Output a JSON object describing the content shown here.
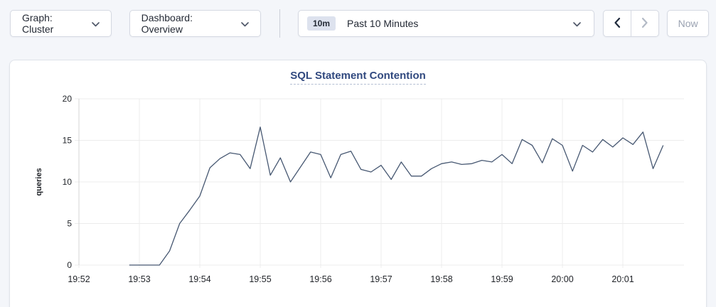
{
  "toolbar": {
    "graph_dropdown_label": "Graph: Cluster",
    "dashboard_dropdown_label": "Dashboard: Overview",
    "time_badge": "10m",
    "time_range_label": "Past 10 Minutes",
    "now_button_label": "Now"
  },
  "icons": {
    "chevron_down": "chevron-down",
    "chevron_left": "chevron-left",
    "chevron_right": "chevron-right"
  },
  "colors": {
    "page_bg": "#f4f6fa",
    "panel_bg": "#ffffff",
    "panel_border": "#e0e4ea",
    "button_border": "#d5d9e2",
    "badge_bg": "#dde2ee",
    "title_text": "#31497f",
    "title_underline": "#b4bfd3",
    "gridline": "#ececec",
    "axis_line": "#d4d4d4",
    "tick_text": "#1f2227",
    "series_line": "#475872",
    "disabled_text": "#9aa2b1",
    "enabled_chevron": "#1f2a3c",
    "disabled_chevron": "#b3bac6"
  },
  "chart_data": {
    "type": "line",
    "title": "SQL Statement Contention",
    "xlabel": "",
    "ylabel": "queries",
    "ylim": [
      0,
      20
    ],
    "yticks": [
      0,
      5,
      10,
      15,
      20
    ],
    "xticks": [
      "19:52",
      "19:53",
      "19:54",
      "19:55",
      "19:56",
      "19:57",
      "19:58",
      "19:59",
      "20:00",
      "20:01"
    ],
    "grid": true,
    "legend": "none",
    "series": [
      {
        "name": "queries",
        "color": "#475872",
        "start_offset_sec": 50,
        "interval_sec": 10,
        "values": [
          0,
          0,
          0,
          0,
          1.7,
          5.0,
          6.6,
          8.3,
          11.7,
          12.8,
          13.5,
          13.3,
          11.6,
          16.6,
          10.8,
          12.9,
          10.0,
          11.8,
          13.6,
          13.3,
          10.5,
          13.3,
          13.7,
          11.5,
          11.2,
          12.0,
          10.3,
          12.4,
          10.7,
          10.7,
          11.6,
          12.2,
          12.4,
          12.1,
          12.2,
          12.6,
          12.4,
          13.3,
          12.2,
          15.1,
          14.4,
          12.3,
          15.2,
          14.4,
          11.3,
          14.4,
          13.6,
          15.1,
          14.2,
          15.3,
          14.5,
          16.0,
          11.6,
          14.4
        ]
      }
    ]
  }
}
